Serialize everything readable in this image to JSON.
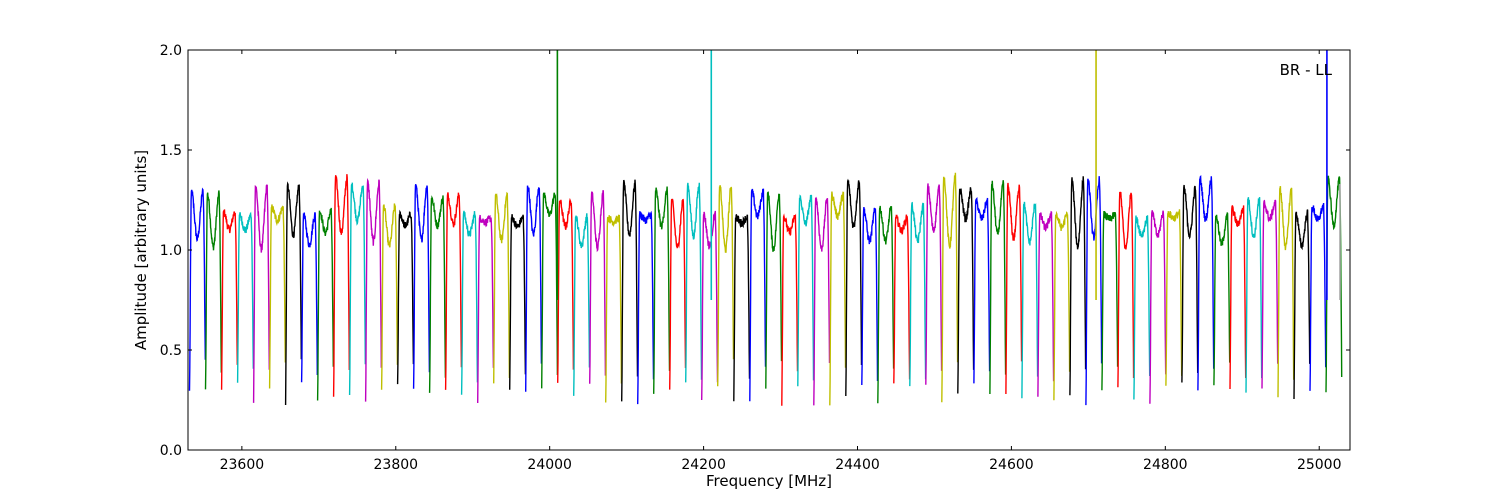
{
  "chart_data": {
    "type": "line",
    "annotation": "BR - LL",
    "xlabel": "Frequency [MHz]",
    "ylabel": "Amplitude [arbitrary units]",
    "xlim": [
      23530,
      25040
    ],
    "ylim": [
      0.0,
      2.0
    ],
    "xticks": [
      23600,
      23800,
      24000,
      24200,
      24400,
      24600,
      24800,
      25000
    ],
    "yticks": [
      0.0,
      0.5,
      1.0,
      1.5,
      2.0
    ],
    "ytick_labels": [
      "0.0",
      "0.5",
      "1.0",
      "1.5",
      "2.0"
    ],
    "grid": false,
    "legend": "none",
    "color_cycle": [
      "#0000ff",
      "#008000",
      "#ff0000",
      "#00bfbf",
      "#bf00bf",
      "#bfbf00",
      "#000000"
    ],
    "band_width_mhz": 20.8,
    "band_start_mhz": 23532,
    "band_count": 72,
    "spikes": [
      {
        "x": 24010,
        "top": 2.0,
        "color": "#008000"
      },
      {
        "x": 24210,
        "top": 2.0,
        "color": "#00bfbf"
      },
      {
        "x": 24710,
        "top": 2.0,
        "color": "#bfbf00"
      },
      {
        "x": 25010,
        "top": 2.0,
        "color": "#0000ff"
      },
      {
        "x": 25027,
        "top": 1.33,
        "color": "#aaaaaa"
      }
    ]
  }
}
